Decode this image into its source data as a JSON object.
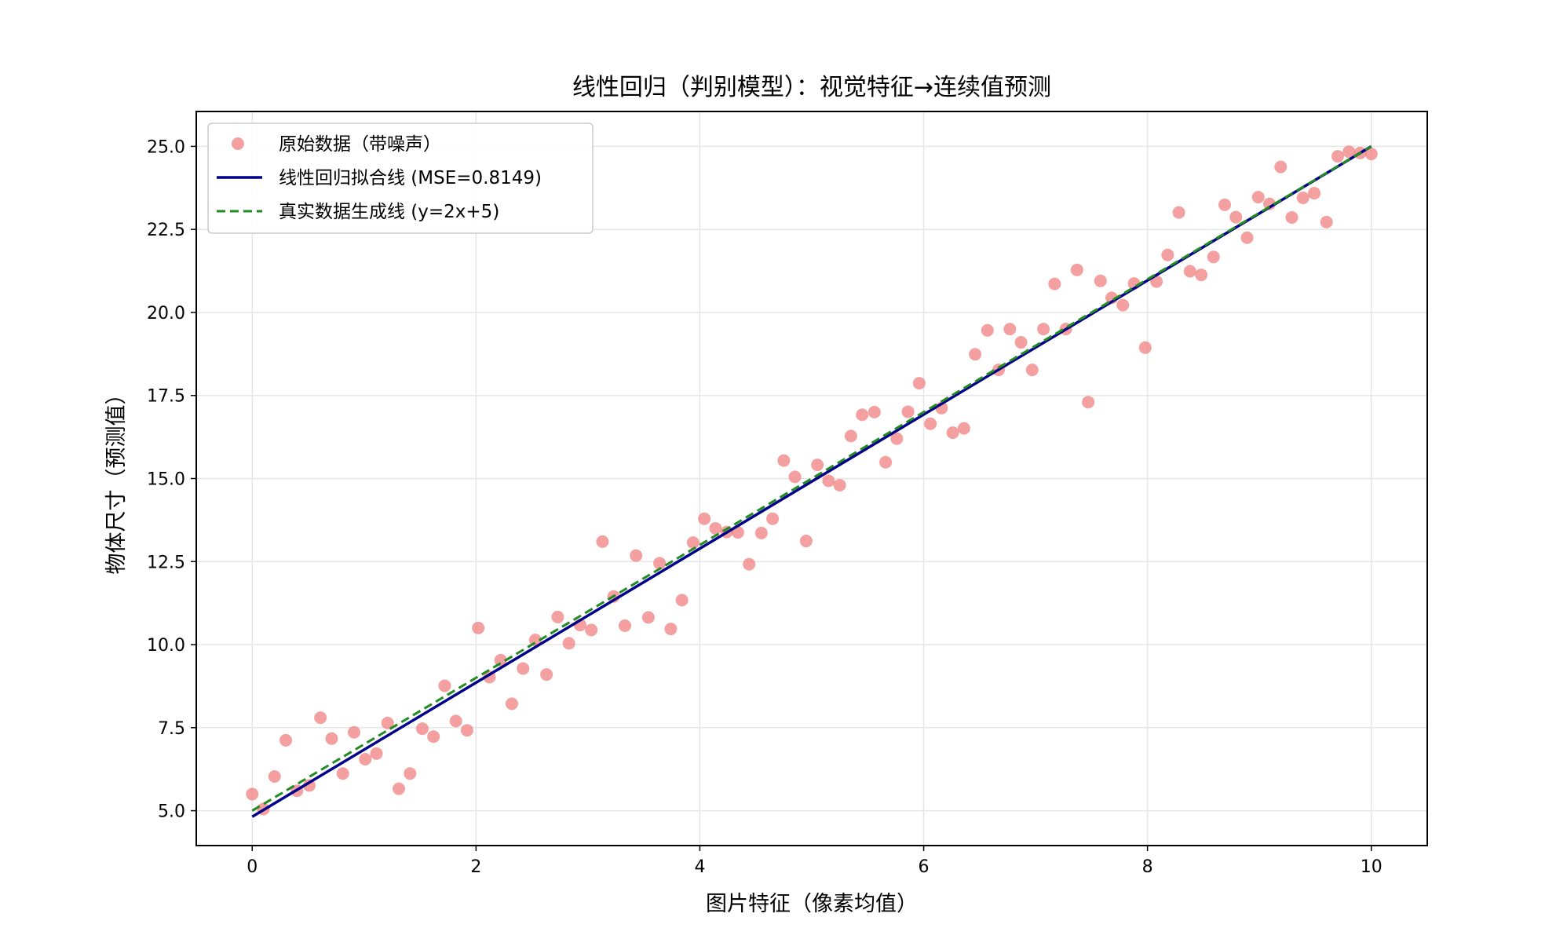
{
  "chart_data": {
    "type": "scatter",
    "title": "线性回归（判别模型）：视觉特征→连续值预测",
    "xlabel": "图片特征（像素均值）",
    "ylabel": "物体尺寸（预测值）",
    "xlim": [
      -0.5,
      10.5
    ],
    "ylim": [
      3.95,
      26.05
    ],
    "xticks": [
      0,
      2,
      4,
      6,
      8,
      10
    ],
    "yticks": [
      5.0,
      7.5,
      10.0,
      12.5,
      15.0,
      17.5,
      20.0,
      22.5,
      25.0
    ],
    "grid": true,
    "legend_position": "top-left",
    "series": [
      {
        "name": "原始数据（带噪声）",
        "kind": "scatter",
        "color": "#f08080",
        "points": [
          [
            0.0,
            5.5
          ],
          [
            0.1,
            5.05
          ],
          [
            0.2,
            6.03
          ],
          [
            0.3,
            7.12
          ],
          [
            0.4,
            5.6
          ],
          [
            0.51,
            5.76
          ],
          [
            0.61,
            7.8
          ],
          [
            0.71,
            7.17
          ],
          [
            0.81,
            6.12
          ],
          [
            0.91,
            7.36
          ],
          [
            1.01,
            6.55
          ],
          [
            1.11,
            6.72
          ],
          [
            1.21,
            7.64
          ],
          [
            1.31,
            5.66
          ],
          [
            1.41,
            6.12
          ],
          [
            1.52,
            7.47
          ],
          [
            1.62,
            7.23
          ],
          [
            1.72,
            8.76
          ],
          [
            1.82,
            7.7
          ],
          [
            1.92,
            7.42
          ],
          [
            2.02,
            10.5
          ],
          [
            2.12,
            9.02
          ],
          [
            2.22,
            9.53
          ],
          [
            2.32,
            8.22
          ],
          [
            2.42,
            9.28
          ],
          [
            2.53,
            10.14
          ],
          [
            2.63,
            9.1
          ],
          [
            2.73,
            10.83
          ],
          [
            2.83,
            10.04
          ],
          [
            2.93,
            10.59
          ],
          [
            3.03,
            10.44
          ],
          [
            3.13,
            13.1
          ],
          [
            3.23,
            11.45
          ],
          [
            3.33,
            10.57
          ],
          [
            3.43,
            12.68
          ],
          [
            3.54,
            10.82
          ],
          [
            3.64,
            12.45
          ],
          [
            3.74,
            10.47
          ],
          [
            3.84,
            11.34
          ],
          [
            3.94,
            13.07
          ],
          [
            4.04,
            13.79
          ],
          [
            4.14,
            13.5
          ],
          [
            4.24,
            13.39
          ],
          [
            4.34,
            13.38
          ],
          [
            4.44,
            12.42
          ],
          [
            4.55,
            13.36
          ],
          [
            4.65,
            13.79
          ],
          [
            4.75,
            15.54
          ],
          [
            4.85,
            15.05
          ],
          [
            4.95,
            13.12
          ],
          [
            5.05,
            15.41
          ],
          [
            5.15,
            14.93
          ],
          [
            5.25,
            14.8
          ],
          [
            5.35,
            16.28
          ],
          [
            5.45,
            16.92
          ],
          [
            5.56,
            17.0
          ],
          [
            5.66,
            15.49
          ],
          [
            5.76,
            16.2
          ],
          [
            5.86,
            17.01
          ],
          [
            5.96,
            17.87
          ],
          [
            6.06,
            16.65
          ],
          [
            6.16,
            17.12
          ],
          [
            6.26,
            16.38
          ],
          [
            6.36,
            16.51
          ],
          [
            6.46,
            18.74
          ],
          [
            6.57,
            19.46
          ],
          [
            6.67,
            18.27
          ],
          [
            6.77,
            19.5
          ],
          [
            6.87,
            19.1
          ],
          [
            6.97,
            18.27
          ],
          [
            7.07,
            19.5
          ],
          [
            7.17,
            20.86
          ],
          [
            7.27,
            19.5
          ],
          [
            7.37,
            21.28
          ],
          [
            7.47,
            17.3
          ],
          [
            7.58,
            20.95
          ],
          [
            7.68,
            20.44
          ],
          [
            7.78,
            20.22
          ],
          [
            7.88,
            20.87
          ],
          [
            7.98,
            18.94
          ],
          [
            8.08,
            20.93
          ],
          [
            8.18,
            21.73
          ],
          [
            8.28,
            23.01
          ],
          [
            8.38,
            21.24
          ],
          [
            8.48,
            21.13
          ],
          [
            8.59,
            21.67
          ],
          [
            8.69,
            23.24
          ],
          [
            8.79,
            22.87
          ],
          [
            8.89,
            22.25
          ],
          [
            8.99,
            23.47
          ],
          [
            9.09,
            23.27
          ],
          [
            9.19,
            24.38
          ],
          [
            9.29,
            22.86
          ],
          [
            9.39,
            23.45
          ],
          [
            9.49,
            23.59
          ],
          [
            9.6,
            22.72
          ],
          [
            9.7,
            24.7
          ],
          [
            9.8,
            24.84
          ],
          [
            9.9,
            24.8
          ],
          [
            10.0,
            24.77
          ]
        ]
      },
      {
        "name": "线性回归拟合线 (MSE=0.8149)",
        "kind": "line",
        "color": "#00008b",
        "style": "solid",
        "x": [
          0,
          10
        ],
        "y": [
          4.82,
          25.0
        ]
      },
      {
        "name": "真实数据生成线 (y=2x+5)",
        "kind": "line",
        "color": "#228b22",
        "style": "dashed",
        "x": [
          0,
          10
        ],
        "y": [
          5.0,
          25.0
        ]
      }
    ]
  }
}
